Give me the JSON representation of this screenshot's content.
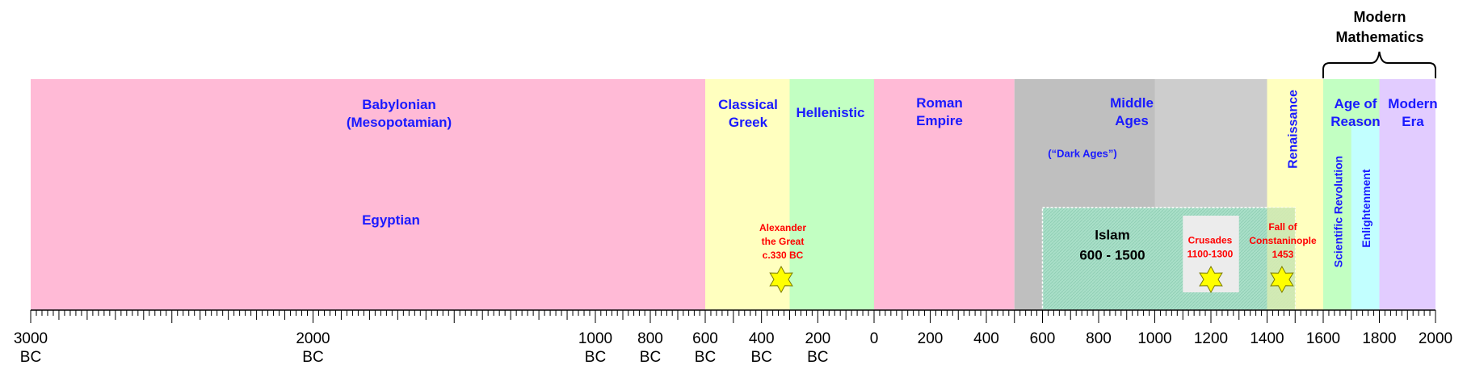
{
  "header": {
    "lines": [
      "Modern",
      "Mathematics"
    ]
  },
  "eras": [
    {
      "id": "babylonian",
      "lines": [
        "Babylonian",
        "(Mesopotamian)"
      ],
      "from": -3000,
      "to": -600,
      "color": "#ffbad6"
    },
    {
      "id": "classical-greek",
      "lines": [
        "Classical",
        "Greek"
      ],
      "from": -600,
      "to": -300,
      "color": "#ffffbf"
    },
    {
      "id": "hellenistic",
      "lines": [
        "Hellenistic"
      ],
      "from": -300,
      "to": 0,
      "color": "#c2ffc2"
    },
    {
      "id": "roman-empire",
      "lines": [
        "Roman",
        "Empire"
      ],
      "from": 0,
      "to": 500,
      "color": "#ffbad6"
    },
    {
      "id": "middle-ages",
      "lines": [
        "Middle",
        "Ages"
      ],
      "from": 500,
      "to": 1400,
      "color": "#bfbfbf"
    },
    {
      "id": "renaissance",
      "lines": [
        "Renaissance"
      ],
      "from": 1400,
      "to": 1600,
      "color": "#ffffbf"
    },
    {
      "id": "age-of-reason",
      "lines": [
        "Age of",
        "Reason"
      ],
      "from": 1600,
      "to": 1800,
      "color": "#c2ffc2"
    },
    {
      "id": "modern-era",
      "lines": [
        "Modern",
        "Era"
      ],
      "from": 1800,
      "to": 2000,
      "color": "#e2ccff"
    }
  ],
  "egyptian": {
    "lines": [
      "Egyptian"
    ]
  },
  "dark_ages": {
    "lines": [
      "(“Dark Ages”)"
    ]
  },
  "sub_eras": [
    {
      "id": "scientific-revolution",
      "lines": [
        "Scientific Revolution"
      ],
      "color": "#c2ffc2"
    },
    {
      "id": "enlightenment",
      "lines": [
        "Enlightenment"
      ],
      "color": "#c2ffff"
    }
  ],
  "islam": {
    "lines": [
      "Islam",
      "600 - 1500"
    ],
    "from": 600,
    "to": 1500
  },
  "events": [
    {
      "id": "alexander",
      "lines": [
        "Alexander",
        "the Great",
        "c.330 BC"
      ],
      "year": -330
    },
    {
      "id": "crusades",
      "lines": [
        "Crusades",
        "1100-1300"
      ],
      "year": 1200,
      "from": 1100,
      "to": 1300
    },
    {
      "id": "constantinople",
      "lines": [
        "Fall of",
        "Constaninople",
        "1453"
      ],
      "year": 1453
    }
  ],
  "axis": {
    "labels": [
      {
        "year": -3000,
        "lines": [
          "3000",
          "BC"
        ]
      },
      {
        "year": -2000,
        "lines": [
          "2000",
          "BC"
        ]
      },
      {
        "year": -1000,
        "lines": [
          "1000",
          "BC"
        ]
      },
      {
        "year": -800,
        "lines": [
          "800",
          "BC"
        ]
      },
      {
        "year": -600,
        "lines": [
          "600",
          "BC"
        ]
      },
      {
        "year": -400,
        "lines": [
          "400",
          "BC"
        ]
      },
      {
        "year": -200,
        "lines": [
          "200",
          "BC"
        ]
      },
      {
        "year": 0,
        "lines": [
          "0"
        ]
      },
      {
        "year": 200,
        "lines": [
          "200"
        ]
      },
      {
        "year": 400,
        "lines": [
          "400"
        ]
      },
      {
        "year": 600,
        "lines": [
          "600"
        ]
      },
      {
        "year": 800,
        "lines": [
          "800"
        ]
      },
      {
        "year": 1000,
        "lines": [
          "1000"
        ]
      },
      {
        "year": 1200,
        "lines": [
          "1200"
        ]
      },
      {
        "year": 1400,
        "lines": [
          "1400"
        ]
      },
      {
        "year": 1600,
        "lines": [
          "1600"
        ]
      },
      {
        "year": 1800,
        "lines": [
          "1800"
        ]
      },
      {
        "year": 2000,
        "lines": [
          "2000"
        ]
      }
    ]
  }
}
